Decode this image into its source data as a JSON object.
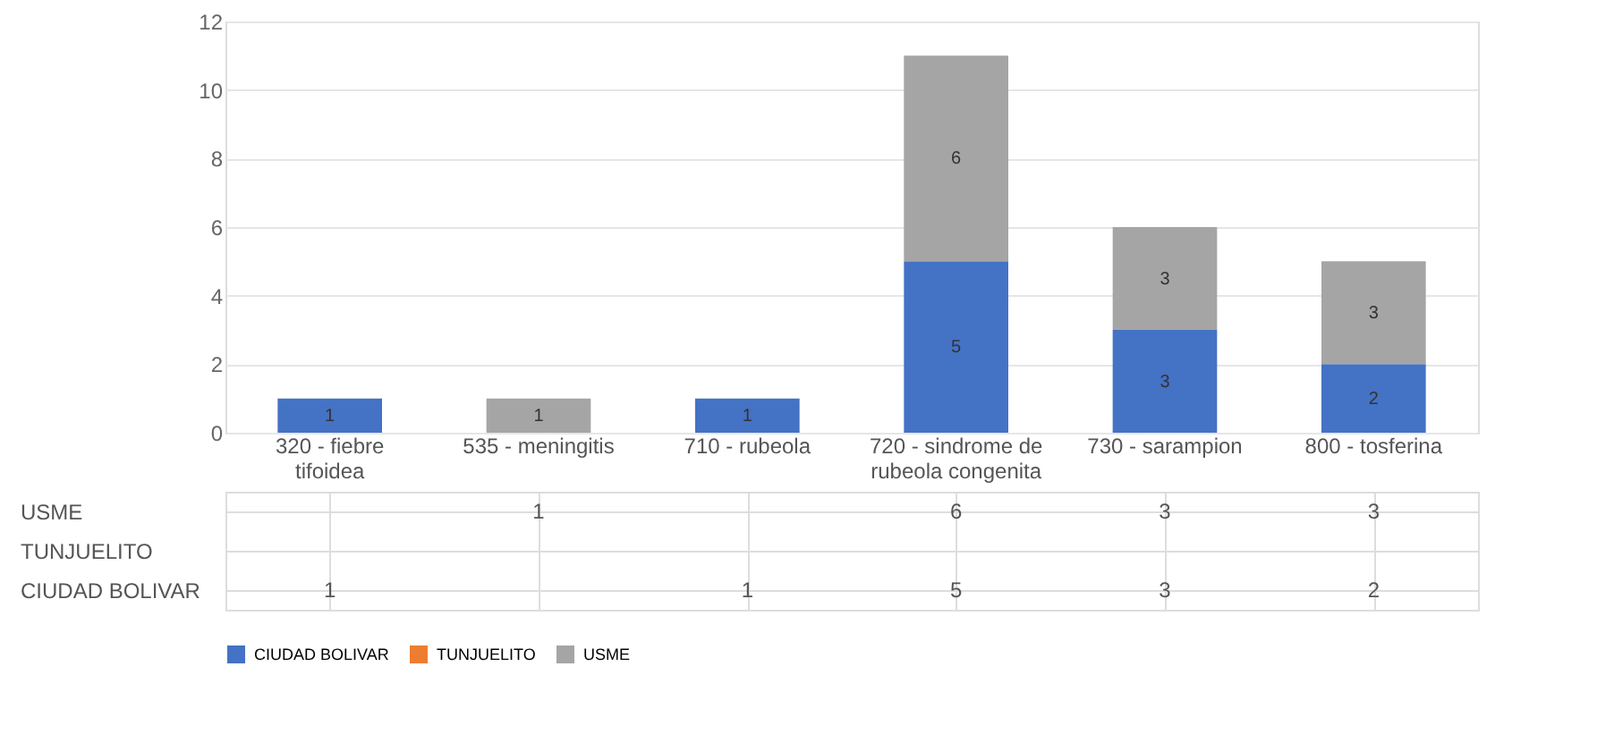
{
  "chart_data": {
    "type": "bar",
    "stacked": true,
    "data_labels": true,
    "legend": "bottom",
    "grid": "y",
    "categories": [
      "320 - fiebre tifoidea",
      "535 - meningitis",
      "710 - rubeola",
      "720 - sindrome de rubeola congenita",
      "730 - sarampion",
      "800 - tosferina"
    ],
    "ylim": [
      0,
      12
    ],
    "yticks": [
      0,
      2,
      4,
      6,
      8,
      10,
      12
    ],
    "series": [
      {
        "name": "CIUDAD BOLIVAR",
        "color": "#4472c4",
        "values": [
          1,
          null,
          1,
          5,
          3,
          2
        ],
        "value_labels": [
          "1",
          null,
          "1",
          "5",
          "3",
          "2"
        ]
      },
      {
        "name": "TUNJUELITO",
        "color": "#ed7d31",
        "values": [
          null,
          null,
          null,
          null,
          null,
          null
        ]
      },
      {
        "name": "USME",
        "color": "#a5a5a5",
        "values": [
          null,
          1,
          null,
          6,
          3,
          3
        ],
        "value_labels": [
          null,
          "1",
          null,
          "6",
          "3",
          "3"
        ]
      }
    ]
  }
}
